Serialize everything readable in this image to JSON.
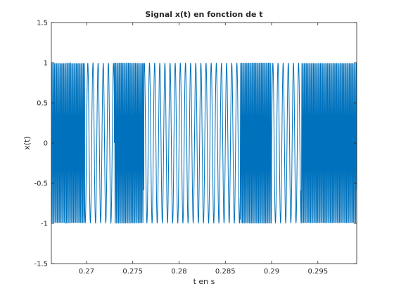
{
  "chart_data": {
    "type": "line",
    "title": "Signal x(t) en fonction de t",
    "xlabel": "t en s",
    "ylabel": "x(t)",
    "xlim": [
      0.2662,
      0.2992
    ],
    "ylim": [
      -1.5,
      1.5
    ],
    "xticks": [
      0.27,
      0.275,
      0.28,
      0.285,
      0.29,
      0.295
    ],
    "xtick_labels": [
      "0.27",
      "0.275",
      "0.28",
      "0.285",
      "0.29",
      "0.295"
    ],
    "yticks": [
      -1.5,
      -1,
      -0.5,
      0,
      0.5,
      1,
      1.5
    ],
    "ytick_labels": [
      "-1.5",
      "-1",
      "-0.5",
      "0",
      "0.5",
      "1",
      "1.5"
    ],
    "grid": false,
    "series": [
      {
        "color": "#0072BD",
        "amplitude": 1,
        "segments": [
          {
            "t_start": 0.2662,
            "t_end": 0.2698,
            "tone_hz": 8000
          },
          {
            "t_start": 0.2698,
            "t_end": 0.273,
            "tone_hz": 1800
          },
          {
            "t_start": 0.273,
            "t_end": 0.2762,
            "tone_hz": 8000
          },
          {
            "t_start": 0.2762,
            "t_end": 0.2866,
            "tone_hz": 1800
          },
          {
            "t_start": 0.2866,
            "t_end": 0.29,
            "tone_hz": 8000
          },
          {
            "t_start": 0.29,
            "t_end": 0.2932,
            "tone_hz": 1800
          },
          {
            "t_start": 0.2932,
            "t_end": 0.2992,
            "tone_hz": 8000
          }
        ]
      }
    ]
  }
}
